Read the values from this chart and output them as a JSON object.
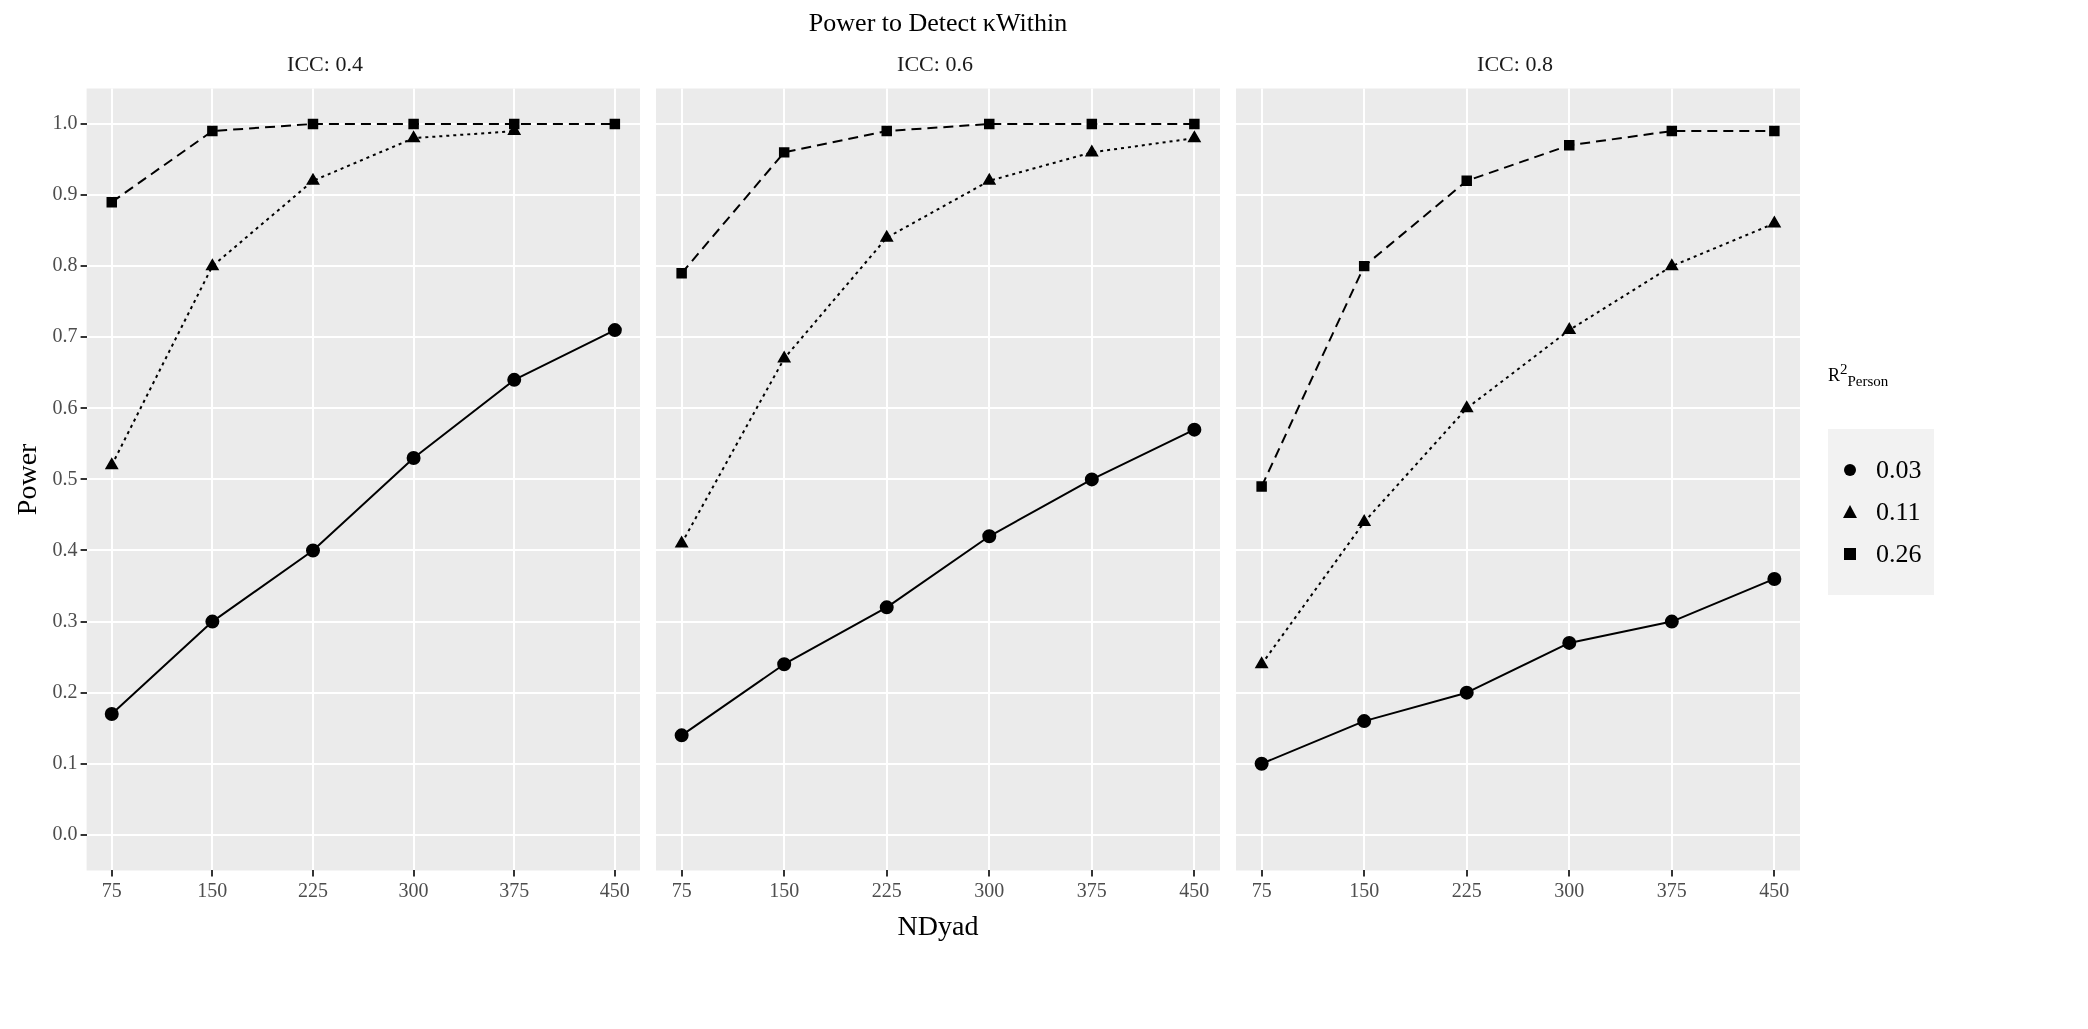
{
  "chart_data": [
    {
      "type": "line",
      "subtitle": "ICC: 0.4",
      "ylabel": "Power",
      "x": [
        75,
        150,
        225,
        300,
        375,
        450
      ],
      "xlim": [
        56.25,
        468.75
      ],
      "xticks": [
        75,
        150,
        225,
        300,
        375,
        450
      ],
      "ylim": [
        -0.05,
        1.05
      ],
      "yticks": [
        {
          "value": 0,
          "label": "0.0"
        },
        0.1,
        0.2,
        0.3,
        0.4,
        0.5,
        0.6,
        0.7,
        0.8,
        0.9,
        {
          "value": 1,
          "label": "1.0"
        }
      ],
      "grid": true,
      "legend": false,
      "series": [
        {
          "color": "#000000",
          "marker": "circle",
          "line_style": "solid",
          "values": [
            0.17,
            0.3,
            0.4,
            0.53,
            0.64,
            0.71
          ]
        },
        {
          "color": "#000000",
          "marker": "triangle",
          "line_style": "dotted",
          "values": [
            0.52,
            0.8,
            0.92,
            0.98,
            0.99,
            null
          ]
        },
        {
          "color": "#000000",
          "marker": "square",
          "line_style": "dashed",
          "values": [
            0.89,
            0.99,
            1.0,
            1.0,
            1.0,
            1.0
          ]
        }
      ]
    },
    {
      "type": "line",
      "title": "Power to Detect κWithin",
      "subtitle": "ICC: 0.6",
      "xlabel": "NDyad",
      "x": [
        75,
        150,
        225,
        300,
        375,
        450
      ],
      "xlim": [
        56.25,
        468.75
      ],
      "xticks": [
        75,
        150,
        225,
        300,
        375,
        450
      ],
      "ylim": [
        -0.05,
        1.05
      ],
      "yticks": [
        0,
        0.1,
        0.2,
        0.3,
        0.4,
        0.5,
        0.6,
        0.7,
        0.8,
        0.9,
        1
      ],
      "grid": true,
      "legend": false,
      "tick_labels": "x",
      "series": [
        {
          "color": "#000000",
          "marker": "circle",
          "line_style": "solid",
          "values": [
            0.14,
            0.24,
            0.32,
            0.42,
            0.5,
            0.57
          ]
        },
        {
          "color": "#000000",
          "marker": "triangle",
          "line_style": "dotted",
          "values": [
            0.41,
            0.67,
            0.84,
            0.92,
            0.96,
            0.98
          ]
        },
        {
          "color": "#000000",
          "marker": "square",
          "line_style": "dashed",
          "values": [
            0.79,
            0.96,
            0.99,
            1.0,
            1.0,
            1.0
          ]
        }
      ]
    },
    {
      "type": "line",
      "subtitle": "ICC: 0.8",
      "legend_title": "R$^{2}$$_{Person}$",
      "x": [
        75,
        150,
        225,
        300,
        375,
        450
      ],
      "xlim": [
        56.25,
        468.75
      ],
      "xticks": [
        75,
        150,
        225,
        300,
        375,
        450
      ],
      "ylim": [
        -0.05,
        1.05
      ],
      "yticks": [
        0,
        0.1,
        0.2,
        0.3,
        0.4,
        0.5,
        0.6,
        0.7,
        0.8,
        0.9,
        1
      ],
      "grid": true,
      "legend": "right",
      "tick_labels": "x",
      "series": [
        {
          "name": "0.03",
          "color": "#000000",
          "marker": "circle",
          "line_style": "solid",
          "values": [
            0.1,
            0.16,
            0.2,
            0.27,
            0.3,
            0.36
          ]
        },
        {
          "name": "0.11",
          "color": "#000000",
          "marker": "triangle",
          "line_style": "dotted",
          "values": [
            0.24,
            0.44,
            0.6,
            0.71,
            0.8,
            0.86
          ]
        },
        {
          "name": "0.26",
          "color": "#000000",
          "marker": "square",
          "line_style": "dashed",
          "values": [
            0.49,
            0.8,
            0.92,
            0.97,
            0.99,
            0.99
          ]
        }
      ]
    }
  ]
}
